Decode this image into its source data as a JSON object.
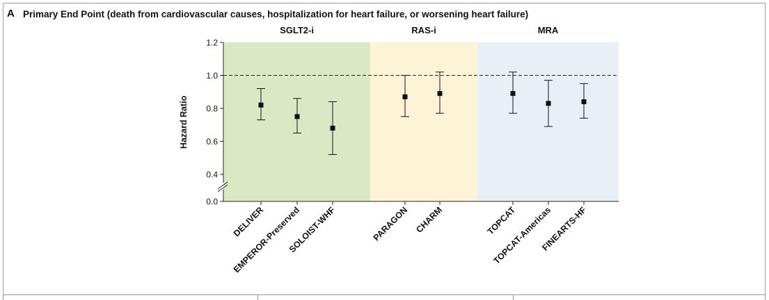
{
  "panel": {
    "letter": "A",
    "title": "Primary End Point (death from cardiovascular causes, hospitalization for heart failure, or worsening heart failure)"
  },
  "chart_data": {
    "type": "scatter",
    "ylabel": "Hazard Ratio",
    "y_ticks": [
      "1.2",
      "1.0",
      "0.8",
      "0.6",
      "0.4",
      "0.0"
    ],
    "reference_line": 1.0,
    "groups": [
      {
        "name": "SGLT2-i",
        "color": "#d9e9c5",
        "trials": [
          {
            "label": "DELIVER",
            "hr": 0.82,
            "low": 0.73,
            "high": 0.92
          },
          {
            "label": "EMPEROR-Preserved",
            "hr": 0.75,
            "low": 0.65,
            "high": 0.86
          },
          {
            "label": "SOLOIST-WHF",
            "hr": 0.68,
            "low": 0.52,
            "high": 0.84
          }
        ]
      },
      {
        "name": "RAS-i",
        "color": "#fdf3d7",
        "trials": [
          {
            "label": "PARAGON",
            "hr": 0.87,
            "low": 0.75,
            "high": 1.0
          },
          {
            "label": "CHARM",
            "hr": 0.89,
            "low": 0.77,
            "high": 1.02
          }
        ]
      },
      {
        "name": "MRA",
        "color": "#e9f0f5",
        "trials": [
          {
            "label": "TOPCAT",
            "hr": 0.89,
            "low": 0.77,
            "high": 1.02
          },
          {
            "label": "TOPCAT-Americas",
            "hr": 0.83,
            "low": 0.69,
            "high": 0.97
          },
          {
            "label": "FINEARTS-HF",
            "hr": 0.84,
            "low": 0.74,
            "high": 0.95
          }
        ]
      }
    ]
  }
}
